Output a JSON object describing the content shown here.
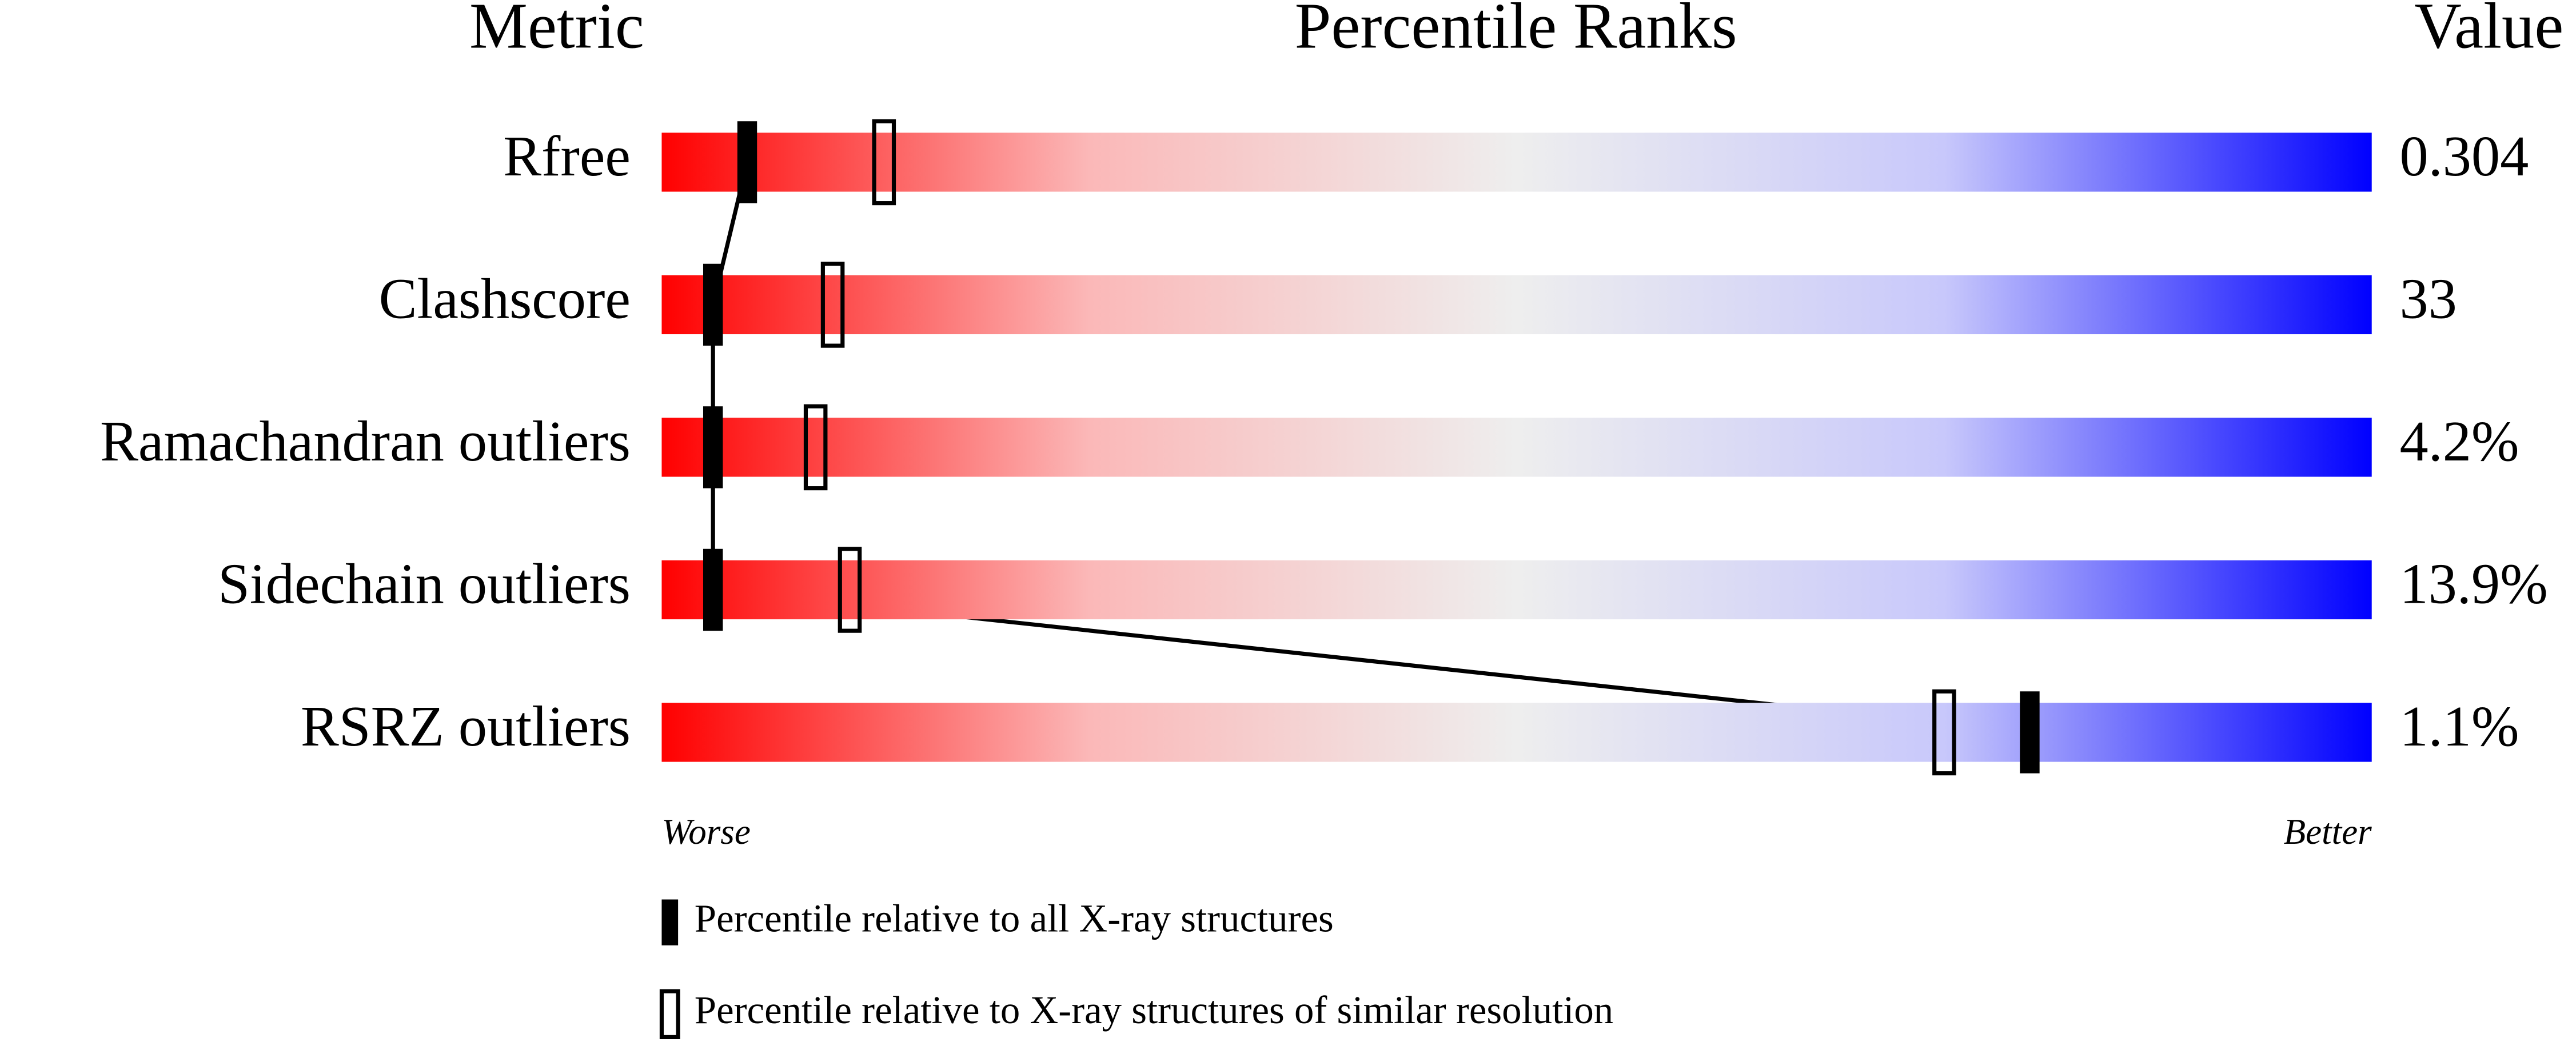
{
  "chart_data": {
    "type": "percentile_slider",
    "title": "Percentile Ranks",
    "headers": {
      "metric": "Metric",
      "value": "Value"
    },
    "categories": [
      "Rfree",
      "Clashscore",
      "Ramachandran outliers",
      "Sidechain outliers",
      "RSRZ outliers"
    ],
    "metric_values": [
      "0.304",
      "33",
      "4.2%",
      "13.9%",
      "1.1%"
    ],
    "series": [
      {
        "name": "Percentile relative to all X-ray structures",
        "color": "#000000",
        "fill": true,
        "values": [
          5,
          3,
          3,
          3,
          80
        ]
      },
      {
        "name": "Percentile relative to X-ray structures of similar resolution",
        "color": "#000000",
        "fill": false,
        "values": [
          13,
          10,
          9,
          11,
          75
        ]
      }
    ],
    "xlim": [
      0,
      100
    ],
    "axis_labels": {
      "left": "Worse",
      "right": "Better"
    }
  }
}
